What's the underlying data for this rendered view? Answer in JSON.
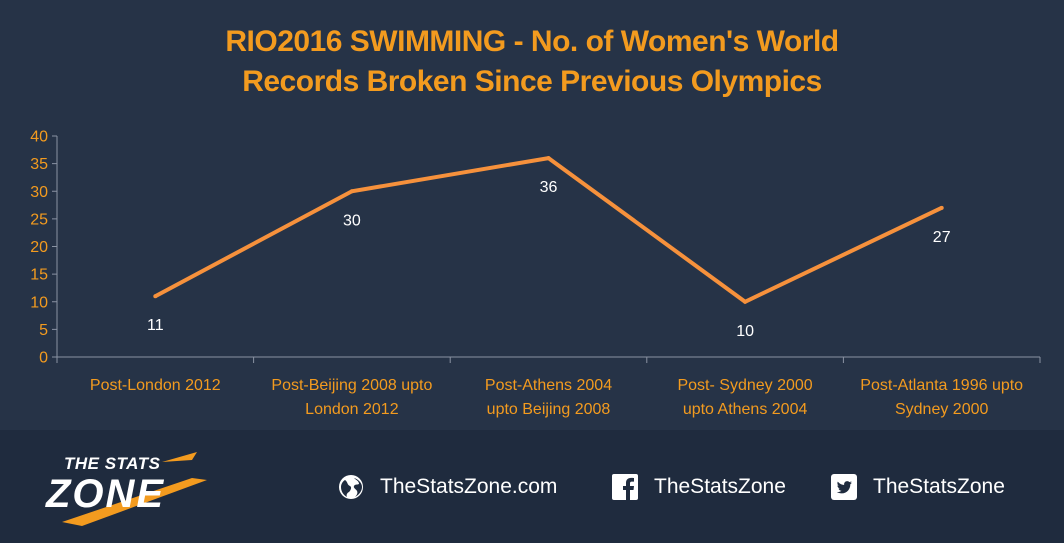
{
  "chart_data": {
    "type": "line",
    "title_lines": [
      "RIO2016 SWIMMING - No. of Women's World",
      "Records Broken Since Previous Olympics"
    ],
    "categories": [
      [
        "Post-London 2012"
      ],
      [
        "Post-Beijing 2008 upto",
        "London 2012"
      ],
      [
        "Post-Athens 2004",
        "upto Beijing 2008"
      ],
      [
        "Post- Sydney 2000",
        "upto Athens 2004"
      ],
      [
        "Post-Atlanta 1996 upto",
        "Sydney 2000"
      ]
    ],
    "values": [
      11,
      30,
      36,
      10,
      27
    ],
    "data_labels": [
      "11",
      "30",
      "36",
      "10",
      "27"
    ],
    "ylim": [
      0,
      40
    ],
    "yticks": [
      0,
      5,
      10,
      15,
      20,
      25,
      30,
      35,
      40
    ],
    "ytick_labels": [
      "0",
      "5",
      "10",
      "15",
      "20",
      "25",
      "30",
      "35",
      "40"
    ],
    "xlabel": "",
    "ylabel": "",
    "grid": false,
    "line_color": "#f6913c",
    "text_color": "#f39b1f",
    "background": "#263347"
  },
  "footer": {
    "logo_top": "THE STATS",
    "logo_bottom": "ZONE",
    "website": "TheStatsZone.com",
    "facebook": "TheStatsZone",
    "twitter": "TheStatsZone",
    "icons": [
      "globe-icon",
      "facebook-icon",
      "twitter-icon"
    ]
  }
}
